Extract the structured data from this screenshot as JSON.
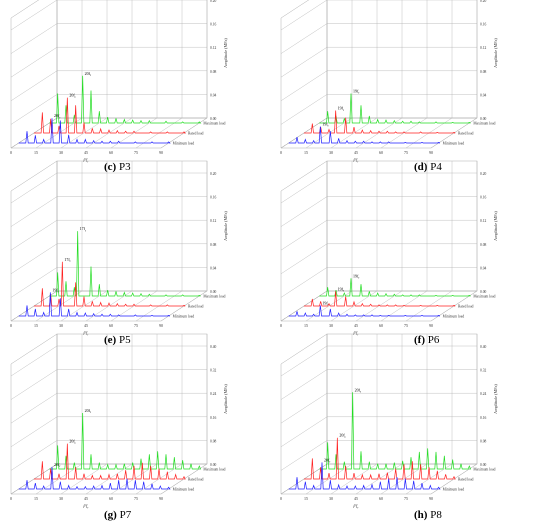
{
  "chart_data": [
    {
      "type": "line",
      "panel_id": "c",
      "caption_label": "(c)",
      "caption_title": "P3",
      "xlabel": "f/f_r",
      "x_ticks": [
        "0",
        "15",
        "30",
        "45",
        "60",
        "75",
        "90"
      ],
      "xlim": [
        0,
        90
      ],
      "ylabel": "Amplitude (MPa)",
      "z_ticks": [
        "0.00",
        "0.04",
        "0.08",
        "0.12",
        "0.16",
        "0.20"
      ],
      "ylim": [
        0,
        0.2
      ],
      "series": [
        {
          "name": "Minimum load",
          "color": "#1f1fff",
          "peak": "20f_r",
          "x": [
            5,
            10,
            15,
            20,
            25,
            30,
            35,
            40,
            45,
            50,
            55,
            60,
            70,
            80,
            90
          ],
          "values": [
            0.02,
            0.013,
            0.006,
            0.042,
            0.038,
            0.014,
            0.006,
            0.006,
            0.004,
            0.003,
            0.003,
            0.003,
            0.002,
            0.002,
            0.002
          ]
        },
        {
          "name": "Rated load",
          "color": "#ff2020",
          "peak": "20f_r",
          "x": [
            5,
            10,
            15,
            20,
            25,
            30,
            35,
            40,
            45,
            50,
            55,
            60,
            70,
            80,
            90
          ],
          "values": [
            0.035,
            0.024,
            0.012,
            0.06,
            0.047,
            0.018,
            0.008,
            0.007,
            0.005,
            0.004,
            0.003,
            0.003,
            0.002,
            0.002,
            0.002
          ]
        },
        {
          "name": "Maximum load",
          "color": "#22dd22",
          "peak": "20f_r",
          "x": [
            5,
            10,
            15,
            20,
            25,
            30,
            35,
            40,
            45,
            50,
            55,
            60,
            70,
            80,
            90
          ],
          "values": [
            0.05,
            0.03,
            0.014,
            0.08,
            0.055,
            0.02,
            0.01,
            0.008,
            0.006,
            0.005,
            0.004,
            0.004,
            0.003,
            0.002,
            0.002
          ]
        }
      ]
    },
    {
      "type": "line",
      "panel_id": "d",
      "caption_label": "(d)",
      "caption_title": "P4",
      "xlabel": "f/f_r",
      "x_ticks": [
        "0",
        "15",
        "30",
        "45",
        "60",
        "75",
        "90"
      ],
      "xlim": [
        0,
        90
      ],
      "ylabel": "Amplitude (MPa)",
      "z_ticks": [
        "0.00",
        "0.04",
        "0.08",
        "0.12",
        "0.16",
        "0.20"
      ],
      "ylim": [
        0,
        0.2
      ],
      "series": [
        {
          "name": "Minimum load",
          "color": "#1f1fff",
          "peak": "19f_r",
          "x": [
            5,
            10,
            15,
            19,
            25,
            30,
            35,
            40,
            45,
            50,
            55,
            60,
            70,
            80,
            90
          ],
          "values": [
            0.01,
            0.006,
            0.004,
            0.028,
            0.02,
            0.008,
            0.004,
            0.003,
            0.003,
            0.002,
            0.002,
            0.002,
            0.001,
            0.001,
            0.001
          ]
        },
        {
          "name": "Rated load",
          "color": "#ff2020",
          "peak": "19f_r",
          "x": [
            5,
            10,
            15,
            19,
            25,
            30,
            35,
            40,
            45,
            50,
            55,
            60,
            70,
            80,
            90
          ],
          "values": [
            0.016,
            0.01,
            0.006,
            0.038,
            0.026,
            0.01,
            0.005,
            0.004,
            0.003,
            0.003,
            0.002,
            0.002,
            0.002,
            0.001,
            0.001
          ]
        },
        {
          "name": "Maximum load",
          "color": "#22dd22",
          "peak": "19f_r",
          "x": [
            5,
            10,
            15,
            19,
            25,
            30,
            35,
            40,
            45,
            50,
            55,
            60,
            70,
            80,
            90
          ],
          "values": [
            0.02,
            0.012,
            0.008,
            0.05,
            0.03,
            0.012,
            0.006,
            0.005,
            0.004,
            0.003,
            0.003,
            0.002,
            0.002,
            0.001,
            0.001
          ]
        }
      ]
    },
    {
      "type": "line",
      "panel_id": "e",
      "caption_label": "(e)",
      "caption_title": "P5",
      "xlabel": "f/f_r",
      "x_ticks": [
        "0",
        "15",
        "30",
        "45",
        "60",
        "75",
        "90"
      ],
      "xlim": [
        0,
        90
      ],
      "ylabel": "Amplitude (MPa)",
      "z_ticks": [
        "0.00",
        "0.04",
        "0.08",
        "0.12",
        "0.16",
        "0.20"
      ],
      "ylim": [
        0,
        0.2
      ],
      "series": [
        {
          "name": "Minimum load",
          "color": "#1f1fff",
          "peak": "19f_r",
          "x": [
            5,
            10,
            15,
            19,
            25,
            30,
            35,
            40,
            45,
            50,
            55,
            60,
            70,
            80,
            90
          ],
          "values": [
            0.018,
            0.012,
            0.006,
            0.04,
            0.03,
            0.012,
            0.006,
            0.005,
            0.004,
            0.003,
            0.003,
            0.002,
            0.002,
            0.001,
            0.001
          ]
        },
        {
          "name": "Rated load",
          "color": "#ff2020",
          "peak": "17f_r",
          "x": [
            5,
            10,
            15,
            17,
            25,
            30,
            35,
            40,
            45,
            50,
            55,
            60,
            70,
            80,
            90
          ],
          "values": [
            0.03,
            0.02,
            0.012,
            0.075,
            0.04,
            0.016,
            0.008,
            0.006,
            0.005,
            0.004,
            0.003,
            0.003,
            0.002,
            0.002,
            0.001
          ]
        },
        {
          "name": "Maximum load",
          "color": "#22dd22",
          "peak": "17f_r",
          "x": [
            5,
            10,
            15,
            17,
            25,
            30,
            35,
            40,
            45,
            50,
            55,
            60,
            70,
            80,
            90
          ],
          "values": [
            0.04,
            0.025,
            0.015,
            0.11,
            0.05,
            0.02,
            0.01,
            0.008,
            0.006,
            0.005,
            0.004,
            0.003,
            0.002,
            0.002,
            0.001
          ]
        }
      ]
    },
    {
      "type": "line",
      "panel_id": "f",
      "caption_label": "(f)",
      "caption_title": "P6",
      "xlabel": "f/f_r",
      "x_ticks": [
        "0",
        "15",
        "30",
        "45",
        "60",
        "75",
        "90"
      ],
      "xlim": [
        0,
        90
      ],
      "ylabel": "Amplitude (MPa)",
      "z_ticks": [
        "0.00",
        "0.04",
        "0.08",
        "0.12",
        "0.16",
        "0.20"
      ],
      "ylim": [
        0,
        0.2
      ],
      "series": [
        {
          "name": "Minimum load",
          "color": "#1f1fff",
          "peak": "19f_r",
          "x": [
            5,
            10,
            15,
            19,
            25,
            30,
            35,
            40,
            45,
            50,
            55,
            60,
            70,
            80,
            90
          ],
          "values": [
            0.008,
            0.005,
            0.003,
            0.018,
            0.012,
            0.005,
            0.003,
            0.002,
            0.002,
            0.002,
            0.001,
            0.001,
            0.001,
            0.001,
            0.001
          ]
        },
        {
          "name": "Rated load",
          "color": "#ff2020",
          "peak": "19f_r",
          "x": [
            5,
            10,
            15,
            19,
            25,
            30,
            35,
            40,
            45,
            50,
            55,
            60,
            70,
            80,
            90
          ],
          "values": [
            0.012,
            0.008,
            0.004,
            0.025,
            0.016,
            0.007,
            0.004,
            0.003,
            0.002,
            0.002,
            0.002,
            0.001,
            0.001,
            0.001,
            0.001
          ]
        },
        {
          "name": "Maximum load",
          "color": "#22dd22",
          "peak": "19f_r",
          "x": [
            5,
            10,
            15,
            19,
            25,
            30,
            35,
            40,
            45,
            50,
            55,
            60,
            70,
            80,
            90
          ],
          "values": [
            0.015,
            0.01,
            0.005,
            0.03,
            0.02,
            0.008,
            0.005,
            0.004,
            0.003,
            0.002,
            0.002,
            0.002,
            0.001,
            0.001,
            0.001
          ]
        }
      ]
    },
    {
      "type": "line",
      "panel_id": "g",
      "caption_label": "(g)",
      "caption_title": "P7",
      "xlabel": "f/f_r",
      "x_ticks": [
        "0",
        "15",
        "30",
        "45",
        "60",
        "75",
        "90"
      ],
      "xlim": [
        0,
        90
      ],
      "ylabel": "Amplitude (MPa)",
      "z_ticks": [
        "0.00",
        "0.08",
        "0.16",
        "0.24",
        "0.32",
        "0.40"
      ],
      "ylim": [
        0,
        0.4
      ],
      "series": [
        {
          "name": "Minimum load",
          "color": "#1f1fff",
          "peak": "20f_r",
          "x": [
            5,
            10,
            15,
            20,
            25,
            30,
            35,
            40,
            45,
            50,
            55,
            60,
            65,
            70,
            75,
            80,
            85,
            90
          ],
          "values": [
            0.03,
            0.02,
            0.01,
            0.075,
            0.025,
            0.012,
            0.008,
            0.008,
            0.01,
            0.012,
            0.02,
            0.03,
            0.035,
            0.03,
            0.025,
            0.018,
            0.01,
            0.006
          ]
        },
        {
          "name": "Rated load",
          "color": "#ff2020",
          "peak": "20f_r",
          "x": [
            5,
            10,
            15,
            20,
            25,
            30,
            35,
            40,
            45,
            50,
            55,
            60,
            65,
            70,
            75,
            80,
            85,
            90
          ],
          "values": [
            0.06,
            0.035,
            0.018,
            0.12,
            0.04,
            0.018,
            0.012,
            0.012,
            0.015,
            0.018,
            0.03,
            0.045,
            0.055,
            0.045,
            0.035,
            0.025,
            0.015,
            0.008
          ]
        },
        {
          "name": "Maximum load",
          "color": "#22dd22",
          "peak": "20f_r",
          "x": [
            5,
            10,
            15,
            20,
            25,
            30,
            35,
            40,
            45,
            50,
            55,
            60,
            65,
            70,
            75,
            80,
            85,
            90
          ],
          "values": [
            0.08,
            0.045,
            0.022,
            0.19,
            0.05,
            0.022,
            0.015,
            0.015,
            0.018,
            0.022,
            0.035,
            0.05,
            0.06,
            0.05,
            0.04,
            0.03,
            0.018,
            0.01
          ]
        }
      ]
    },
    {
      "type": "line",
      "panel_id": "h",
      "caption_label": "(h)",
      "caption_title": "P8",
      "xlabel": "f/f_r",
      "x_ticks": [
        "0",
        "15",
        "30",
        "45",
        "60",
        "75",
        "90"
      ],
      "xlim": [
        0,
        90
      ],
      "ylabel": "Amplitude (MPa)",
      "z_ticks": [
        "0.00",
        "0.08",
        "0.16",
        "0.24",
        "0.32",
        "0.40"
      ],
      "ylim": [
        0,
        0.4
      ],
      "series": [
        {
          "name": "Minimum load",
          "color": "#1f1fff",
          "peak": "20f_r",
          "x": [
            5,
            10,
            15,
            20,
            25,
            30,
            35,
            40,
            45,
            50,
            55,
            60,
            65,
            70,
            75,
            80,
            85,
            90
          ],
          "values": [
            0.04,
            0.025,
            0.012,
            0.09,
            0.03,
            0.014,
            0.01,
            0.01,
            0.012,
            0.015,
            0.025,
            0.035,
            0.04,
            0.035,
            0.028,
            0.02,
            0.012,
            0.006
          ]
        },
        {
          "name": "Rated load",
          "color": "#ff2020",
          "peak": "20f_r",
          "x": [
            5,
            10,
            15,
            20,
            25,
            30,
            35,
            40,
            45,
            50,
            55,
            60,
            65,
            70,
            75,
            80,
            85,
            90
          ],
          "values": [
            0.07,
            0.04,
            0.02,
            0.14,
            0.045,
            0.02,
            0.014,
            0.014,
            0.018,
            0.022,
            0.035,
            0.05,
            0.06,
            0.05,
            0.04,
            0.028,
            0.016,
            0.008
          ]
        },
        {
          "name": "Maximum load",
          "color": "#22dd22",
          "peak": "20f_r",
          "x": [
            5,
            10,
            15,
            20,
            25,
            30,
            35,
            40,
            45,
            50,
            55,
            60,
            65,
            70,
            75,
            80,
            85,
            90
          ],
          "values": [
            0.09,
            0.05,
            0.025,
            0.26,
            0.06,
            0.025,
            0.018,
            0.018,
            0.022,
            0.028,
            0.04,
            0.058,
            0.07,
            0.058,
            0.045,
            0.032,
            0.018,
            0.01
          ]
        }
      ]
    }
  ]
}
